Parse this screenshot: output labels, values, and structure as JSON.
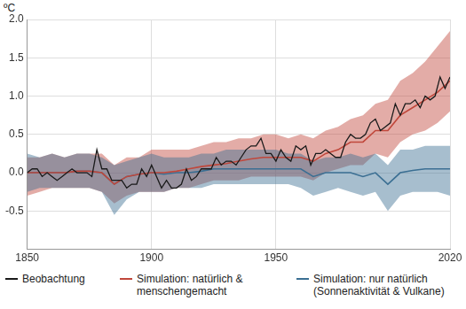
{
  "chart_data": {
    "type": "line",
    "y_label": "ºC",
    "xlim": [
      1850,
      2020
    ],
    "xticks": [
      1850,
      1900,
      1950,
      2020
    ],
    "ylim": [
      -1.0,
      2.0
    ],
    "yticks": [
      {
        "value": -0.5,
        "label": "-0.5"
      },
      {
        "value": 0,
        "label": "0.0"
      },
      {
        "value": 0.5,
        "label": "0.5"
      },
      {
        "value": 1,
        "label": "1.0"
      },
      {
        "value": 1.5,
        "label": "1.5"
      },
      {
        "value": 2,
        "label": "2.0"
      }
    ],
    "grid": true,
    "legend": "bottom",
    "series": [
      {
        "name": "Beobachtung",
        "color": "#1a1a1a",
        "x": [
          1850,
          1852,
          1854,
          1856,
          1858,
          1860,
          1862,
          1864,
          1866,
          1868,
          1870,
          1872,
          1874,
          1876,
          1878,
          1880,
          1882,
          1884,
          1886,
          1888,
          1890,
          1892,
          1894,
          1896,
          1898,
          1900,
          1902,
          1904,
          1906,
          1908,
          1910,
          1912,
          1914,
          1916,
          1918,
          1920,
          1922,
          1924,
          1926,
          1928,
          1930,
          1932,
          1934,
          1936,
          1938,
          1940,
          1942,
          1944,
          1946,
          1948,
          1950,
          1952,
          1954,
          1956,
          1958,
          1960,
          1962,
          1964,
          1966,
          1968,
          1970,
          1972,
          1974,
          1976,
          1978,
          1980,
          1982,
          1984,
          1986,
          1988,
          1990,
          1992,
          1994,
          1996,
          1998,
          2000,
          2002,
          2004,
          2006,
          2008,
          2010,
          2012,
          2014,
          2016,
          2018,
          2020
        ],
        "values": [
          0.0,
          0.05,
          0.05,
          -0.05,
          0.0,
          -0.05,
          -0.1,
          -0.05,
          0.0,
          0.05,
          0.0,
          0.0,
          0.0,
          -0.05,
          0.3,
          0.05,
          0.05,
          -0.1,
          -0.1,
          -0.1,
          -0.2,
          -0.15,
          -0.15,
          0.05,
          -0.05,
          0.1,
          -0.05,
          -0.2,
          -0.1,
          -0.2,
          -0.2,
          -0.15,
          0.05,
          -0.1,
          -0.05,
          0.05,
          0.05,
          0.05,
          0.2,
          0.1,
          0.15,
          0.15,
          0.1,
          0.2,
          0.3,
          0.35,
          0.35,
          0.45,
          0.25,
          0.25,
          0.15,
          0.3,
          0.2,
          0.15,
          0.35,
          0.3,
          0.35,
          0.1,
          0.25,
          0.25,
          0.3,
          0.25,
          0.2,
          0.2,
          0.4,
          0.5,
          0.45,
          0.45,
          0.5,
          0.65,
          0.7,
          0.55,
          0.6,
          0.65,
          0.9,
          0.75,
          0.9,
          0.9,
          0.95,
          0.85,
          1.0,
          0.95,
          1.0,
          1.25,
          1.1,
          1.25
        ]
      },
      {
        "name": "Simulation: natürlich & menschengemacht",
        "color": "#c0473b",
        "x": [
          1850,
          1855,
          1860,
          1865,
          1870,
          1875,
          1880,
          1885,
          1890,
          1895,
          1900,
          1905,
          1910,
          1915,
          1920,
          1925,
          1930,
          1935,
          1940,
          1945,
          1950,
          1955,
          1960,
          1965,
          1970,
          1975,
          1980,
          1985,
          1990,
          1995,
          2000,
          2005,
          2010,
          2015,
          2020
        ],
        "values": [
          0.0,
          0.0,
          0.0,
          0.0,
          0.02,
          0.02,
          0.0,
          -0.15,
          -0.05,
          -0.02,
          0.0,
          0.0,
          0.02,
          0.05,
          0.08,
          0.1,
          0.12,
          0.15,
          0.18,
          0.2,
          0.2,
          0.2,
          0.2,
          0.15,
          0.25,
          0.3,
          0.4,
          0.4,
          0.55,
          0.55,
          0.75,
          0.85,
          0.95,
          1.05,
          1.2
        ],
        "lower": [
          -0.3,
          -0.25,
          -0.2,
          -0.2,
          -0.2,
          -0.2,
          -0.25,
          -0.4,
          -0.3,
          -0.25,
          -0.25,
          -0.25,
          -0.2,
          -0.2,
          -0.15,
          -0.1,
          -0.1,
          -0.1,
          -0.05,
          -0.05,
          -0.05,
          -0.05,
          -0.05,
          -0.1,
          0.0,
          0.05,
          0.1,
          0.1,
          0.25,
          0.2,
          0.4,
          0.5,
          0.55,
          0.65,
          0.8
        ],
        "upper": [
          0.2,
          0.2,
          0.25,
          0.2,
          0.25,
          0.25,
          0.25,
          0.1,
          0.2,
          0.2,
          0.3,
          0.3,
          0.3,
          0.3,
          0.35,
          0.4,
          0.4,
          0.45,
          0.45,
          0.5,
          0.5,
          0.45,
          0.5,
          0.45,
          0.55,
          0.6,
          0.7,
          0.75,
          0.9,
          0.95,
          1.2,
          1.3,
          1.45,
          1.65,
          1.85
        ]
      },
      {
        "name": "Simulation: nur natürlich (Sonnenaktivität & Vulkane)",
        "color": "#3b6f93",
        "x": [
          1850,
          1855,
          1860,
          1865,
          1870,
          1875,
          1880,
          1885,
          1890,
          1895,
          1900,
          1905,
          1910,
          1915,
          1920,
          1925,
          1930,
          1935,
          1940,
          1945,
          1950,
          1955,
          1960,
          1965,
          1970,
          1975,
          1980,
          1985,
          1990,
          1995,
          2000,
          2005,
          2010,
          2015,
          2020
        ],
        "values": [
          0.0,
          0.0,
          0.0,
          0.0,
          0.02,
          0.02,
          0.0,
          -0.15,
          -0.05,
          -0.02,
          0.0,
          -0.02,
          0.0,
          0.0,
          0.02,
          0.05,
          0.05,
          0.05,
          0.05,
          0.05,
          0.05,
          0.05,
          0.05,
          -0.05,
          0.0,
          0.0,
          0.0,
          -0.05,
          0.0,
          -0.15,
          0.0,
          0.03,
          0.05,
          0.05,
          0.05
        ],
        "lower": [
          -0.25,
          -0.2,
          -0.2,
          -0.2,
          -0.2,
          -0.2,
          -0.25,
          -0.55,
          -0.35,
          -0.25,
          -0.25,
          -0.25,
          -0.2,
          -0.2,
          -0.2,
          -0.15,
          -0.15,
          -0.15,
          -0.15,
          -0.15,
          -0.15,
          -0.15,
          -0.2,
          -0.3,
          -0.25,
          -0.2,
          -0.25,
          -0.3,
          -0.25,
          -0.5,
          -0.3,
          -0.25,
          -0.25,
          -0.25,
          -0.3
        ],
        "upper": [
          0.25,
          0.2,
          0.25,
          0.2,
          0.25,
          0.25,
          0.2,
          0.1,
          0.15,
          0.2,
          0.25,
          0.2,
          0.2,
          0.2,
          0.25,
          0.25,
          0.3,
          0.3,
          0.3,
          0.3,
          0.3,
          0.25,
          0.25,
          0.15,
          0.2,
          0.2,
          0.25,
          0.2,
          0.25,
          0.1,
          0.3,
          0.3,
          0.35,
          0.35,
          0.35
        ]
      }
    ]
  }
}
